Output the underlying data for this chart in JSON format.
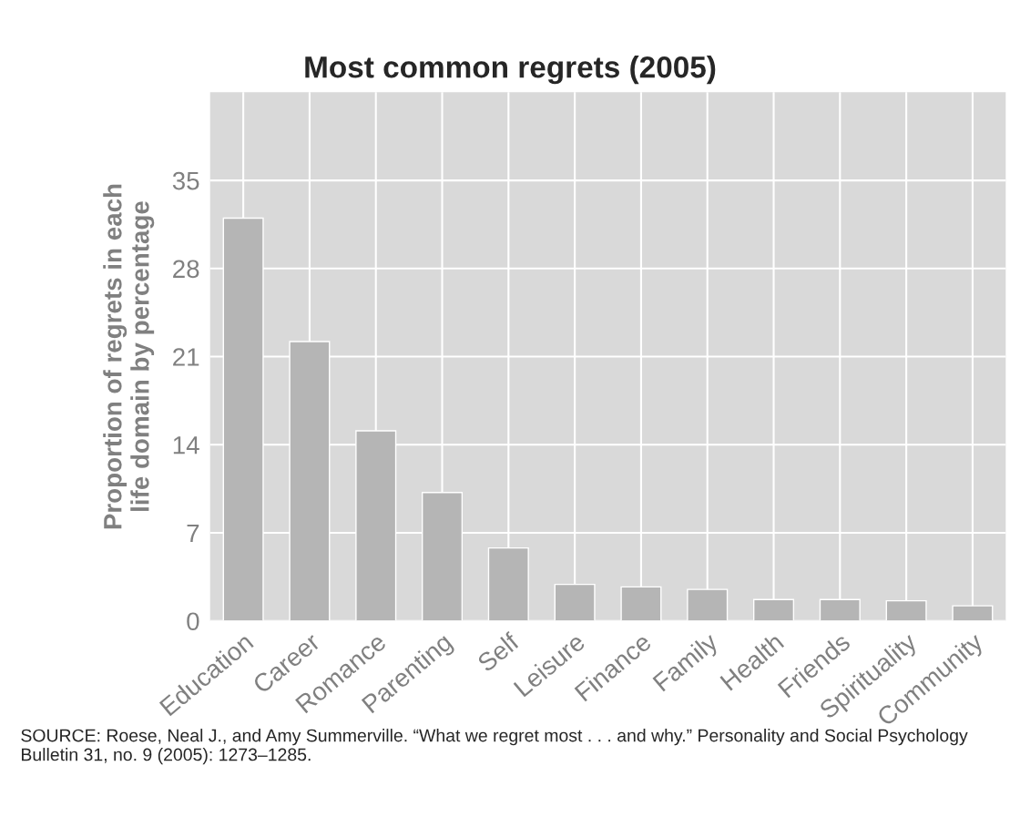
{
  "chart_data": {
    "type": "bar",
    "title": "Most common regrets (2005)",
    "ylabel": "Proportion of regrets in each\nlife domain by percentage",
    "categories": [
      "Education",
      "Career",
      "Romance",
      "Parenting",
      "Self",
      "Leisure",
      "Finance",
      "Family",
      "Health",
      "Friends",
      "Spirituality",
      "Community"
    ],
    "values": [
      32,
      22.2,
      15.1,
      10.2,
      5.8,
      2.9,
      2.7,
      2.5,
      1.7,
      1.7,
      1.6,
      1.2
    ],
    "color": "#b5b5b5",
    "ylim": [
      0,
      42
    ],
    "yticks": [
      0,
      7,
      14,
      21,
      28,
      35
    ],
    "grid": true,
    "annotations": [
      "SOURCE: Roese, Neal J., and Amy Summerville. “What we regret most . . . and why.” Personality and Social Psychology Bulletin 31, no. 9 (2005): 1273–1285."
    ]
  }
}
